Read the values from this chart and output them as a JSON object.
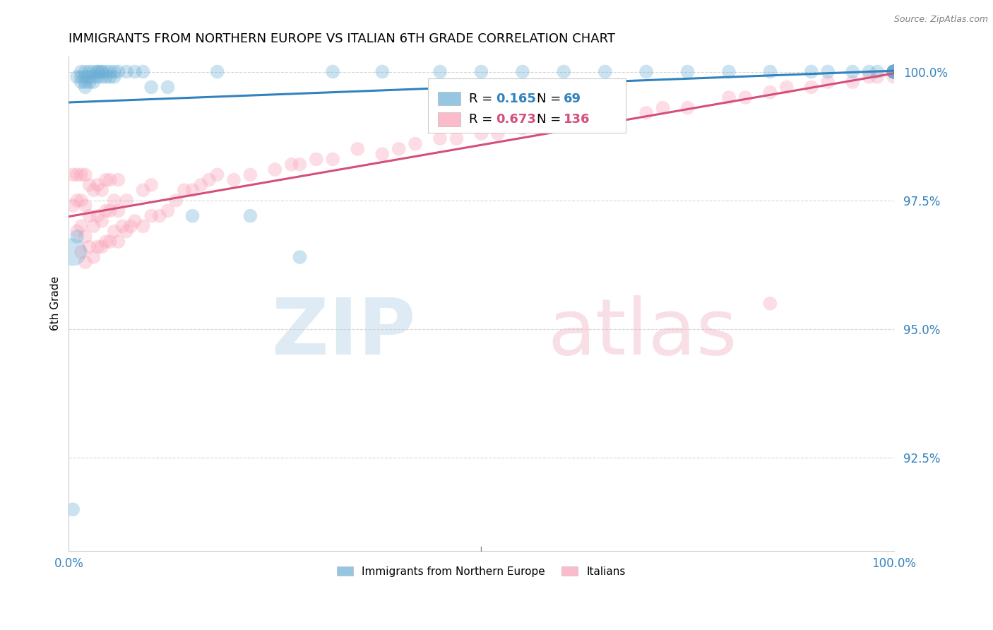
{
  "title": "IMMIGRANTS FROM NORTHERN EUROPE VS ITALIAN 6TH GRADE CORRELATION CHART",
  "source": "Source: ZipAtlas.com",
  "ylabel": "6th Grade",
  "y_tick_labels": [
    "92.5%",
    "95.0%",
    "97.5%",
    "100.0%"
  ],
  "y_tick_values": [
    0.925,
    0.95,
    0.975,
    1.0
  ],
  "x_range": [
    0.0,
    1.0
  ],
  "y_min": 0.907,
  "y_max": 1.003,
  "legend_blue_r": "0.165",
  "legend_blue_n": "69",
  "legend_pink_r": "0.673",
  "legend_pink_n": "136",
  "legend_label_blue": "Immigrants from Northern Europe",
  "legend_label_pink": "Italians",
  "color_blue": "#6baed6",
  "color_pink": "#fa9fb5",
  "color_blue_line": "#3182bd",
  "color_pink_line": "#d44f7a",
  "color_blue_text": "#3182bd",
  "color_pink_text": "#d44f7a",
  "blue_x": [
    0.005,
    0.01,
    0.01,
    0.015,
    0.015,
    0.015,
    0.02,
    0.02,
    0.02,
    0.02,
    0.025,
    0.025,
    0.025,
    0.03,
    0.03,
    0.03,
    0.035,
    0.035,
    0.035,
    0.04,
    0.04,
    0.04,
    0.045,
    0.045,
    0.05,
    0.05,
    0.055,
    0.055,
    0.06,
    0.07,
    0.08,
    0.09,
    0.1,
    0.12,
    0.15,
    0.18,
    0.22,
    0.28,
    0.32,
    0.38,
    0.45,
    0.5,
    0.55,
    0.6,
    0.65,
    0.7,
    0.75,
    0.8,
    0.85,
    0.9,
    0.92,
    0.95,
    0.97,
    0.98,
    1.0,
    1.0,
    1.0,
    1.0,
    1.0,
    1.0,
    1.0,
    1.0,
    1.0,
    1.0,
    1.0,
    1.0,
    1.0,
    1.0,
    1.0
  ],
  "blue_y": [
    0.915,
    0.968,
    0.999,
    0.998,
    0.999,
    1.0,
    0.997,
    0.998,
    0.999,
    1.0,
    0.998,
    0.999,
    1.0,
    0.998,
    0.999,
    1.0,
    0.999,
    1.0,
    1.0,
    0.999,
    1.0,
    1.0,
    0.999,
    1.0,
    0.999,
    1.0,
    0.999,
    1.0,
    1.0,
    1.0,
    1.0,
    1.0,
    0.997,
    0.997,
    0.972,
    1.0,
    0.972,
    0.964,
    1.0,
    1.0,
    1.0,
    1.0,
    1.0,
    1.0,
    1.0,
    1.0,
    1.0,
    1.0,
    1.0,
    1.0,
    1.0,
    1.0,
    1.0,
    1.0,
    1.0,
    1.0,
    1.0,
    1.0,
    1.0,
    1.0,
    1.0,
    1.0,
    1.0,
    1.0,
    1.0,
    1.0,
    1.0,
    1.0,
    1.0
  ],
  "blue_size": [
    20,
    20,
    20,
    20,
    20,
    20,
    20,
    20,
    20,
    20,
    20,
    20,
    20,
    20,
    20,
    20,
    20,
    20,
    20,
    20,
    20,
    20,
    20,
    20,
    20,
    20,
    20,
    20,
    20,
    20,
    20,
    20,
    20,
    20,
    20,
    20,
    20,
    20,
    20,
    20,
    20,
    20,
    20,
    20,
    20,
    20,
    20,
    20,
    20,
    20,
    20,
    20,
    20,
    20,
    20,
    20,
    20,
    20,
    20,
    20,
    20,
    20,
    20,
    20,
    20,
    20,
    20,
    20,
    20
  ],
  "blue_size_special": [
    200
  ],
  "blue_x_special": [
    0.005
  ],
  "blue_y_special": [
    0.965
  ],
  "pink_x": [
    0.005,
    0.005,
    0.01,
    0.01,
    0.01,
    0.015,
    0.015,
    0.015,
    0.015,
    0.02,
    0.02,
    0.02,
    0.02,
    0.025,
    0.025,
    0.025,
    0.03,
    0.03,
    0.03,
    0.035,
    0.035,
    0.035,
    0.04,
    0.04,
    0.04,
    0.045,
    0.045,
    0.045,
    0.05,
    0.05,
    0.05,
    0.055,
    0.055,
    0.06,
    0.06,
    0.06,
    0.065,
    0.07,
    0.07,
    0.075,
    0.08,
    0.09,
    0.09,
    0.1,
    0.1,
    0.11,
    0.12,
    0.13,
    0.14,
    0.15,
    0.16,
    0.17,
    0.18,
    0.2,
    0.22,
    0.25,
    0.27,
    0.28,
    0.3,
    0.32,
    0.35,
    0.38,
    0.4,
    0.42,
    0.45,
    0.47,
    0.5,
    0.52,
    0.55,
    0.57,
    0.6,
    0.65,
    0.7,
    0.72,
    0.75,
    0.8,
    0.82,
    0.85,
    0.87,
    0.9,
    0.85,
    0.92,
    0.95,
    0.97,
    0.98,
    1.0,
    1.0,
    1.0,
    1.0,
    1.0,
    1.0,
    1.0,
    1.0,
    1.0,
    1.0,
    1.0,
    1.0,
    1.0,
    1.0,
    1.0,
    1.0,
    1.0,
    1.0,
    1.0,
    1.0,
    1.0,
    1.0,
    1.0,
    1.0,
    1.0,
    1.0,
    1.0,
    1.0,
    1.0,
    1.0,
    1.0,
    1.0,
    1.0,
    1.0,
    1.0,
    1.0,
    1.0,
    1.0,
    1.0,
    1.0,
    1.0,
    1.0,
    1.0,
    1.0,
    1.0,
    1.0,
    1.0,
    1.0,
    1.0,
    1.0,
    1.0
  ],
  "pink_y": [
    0.974,
    0.98,
    0.969,
    0.975,
    0.98,
    0.965,
    0.97,
    0.975,
    0.98,
    0.963,
    0.968,
    0.974,
    0.98,
    0.966,
    0.972,
    0.978,
    0.964,
    0.97,
    0.977,
    0.966,
    0.972,
    0.978,
    0.966,
    0.971,
    0.977,
    0.967,
    0.973,
    0.979,
    0.967,
    0.973,
    0.979,
    0.969,
    0.975,
    0.967,
    0.973,
    0.979,
    0.97,
    0.969,
    0.975,
    0.97,
    0.971,
    0.97,
    0.977,
    0.972,
    0.978,
    0.972,
    0.973,
    0.975,
    0.977,
    0.977,
    0.978,
    0.979,
    0.98,
    0.979,
    0.98,
    0.981,
    0.982,
    0.982,
    0.983,
    0.983,
    0.985,
    0.984,
    0.985,
    0.986,
    0.987,
    0.987,
    0.988,
    0.988,
    0.989,
    0.989,
    0.99,
    0.992,
    0.992,
    0.993,
    0.993,
    0.995,
    0.995,
    0.996,
    0.997,
    0.997,
    0.955,
    0.998,
    0.998,
    0.999,
    0.999,
    0.999,
    1.0,
    1.0,
    1.0,
    1.0,
    1.0,
    1.0,
    1.0,
    1.0,
    1.0,
    1.0,
    1.0,
    1.0,
    1.0,
    1.0,
    1.0,
    1.0,
    1.0,
    1.0,
    1.0,
    1.0,
    1.0,
    1.0,
    1.0,
    1.0,
    1.0,
    1.0,
    1.0,
    1.0,
    1.0,
    1.0,
    1.0,
    1.0,
    1.0,
    1.0,
    1.0,
    1.0,
    1.0,
    1.0,
    1.0,
    1.0,
    1.0,
    1.0,
    1.0,
    1.0,
    1.0,
    1.0,
    1.0,
    1.0,
    1.0,
    1.0
  ],
  "pink_size": [
    20,
    20,
    20,
    20,
    20,
    20,
    20,
    20,
    20,
    20,
    20,
    20,
    20,
    20,
    20,
    20,
    20,
    20,
    20,
    20,
    20,
    20,
    20,
    20,
    20,
    20,
    20,
    20,
    20,
    20,
    20,
    20,
    20,
    20,
    20,
    20,
    20,
    20,
    20,
    20,
    20,
    20,
    20,
    20,
    20,
    20,
    20,
    20,
    20,
    20,
    20,
    20,
    20,
    20,
    20,
    20,
    20,
    20,
    20,
    20,
    20,
    20,
    20,
    20,
    20,
    20,
    20,
    20,
    20,
    20,
    20,
    20,
    20,
    20,
    20,
    20,
    20,
    20,
    20,
    20,
    20,
    20,
    20,
    20,
    20,
    20,
    20,
    20,
    20,
    20,
    20,
    20,
    20,
    20,
    20,
    20,
    20,
    20,
    20,
    20,
    20,
    20,
    20,
    20,
    20,
    20,
    20,
    20,
    20,
    20,
    20,
    20,
    20,
    20,
    20,
    20,
    20,
    20,
    20,
    20,
    20,
    20,
    20,
    20,
    20,
    20,
    20,
    20,
    20,
    20,
    20,
    20,
    20,
    20,
    20,
    20
  ]
}
